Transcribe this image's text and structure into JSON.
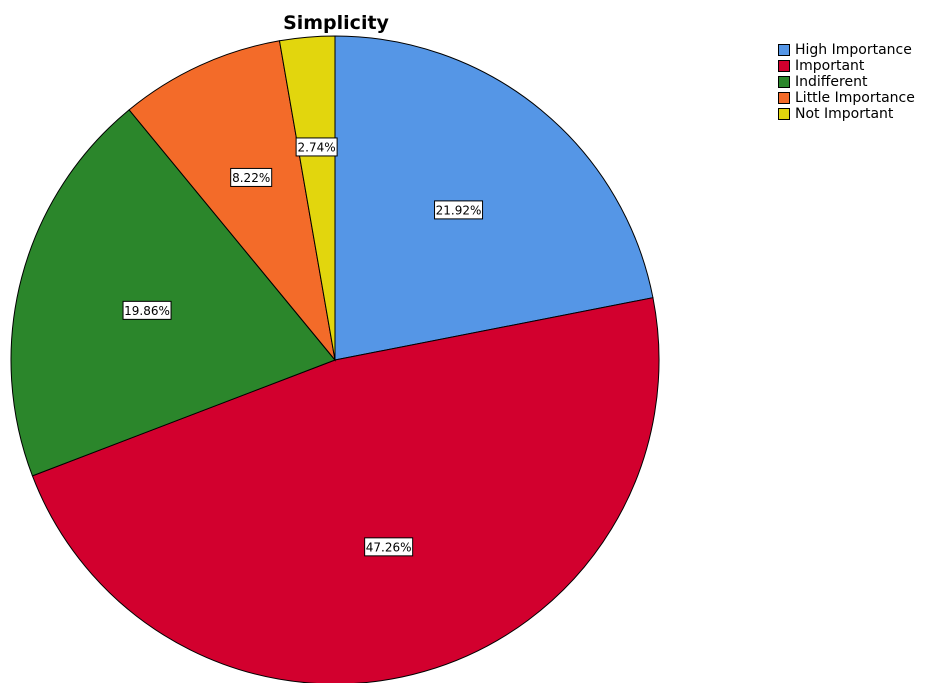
{
  "chart_data": {
    "type": "pie",
    "title": "Simplicity",
    "categories": [
      "High Importance",
      "Important",
      "Indifferent",
      "Little Importance",
      "Not Important"
    ],
    "values": [
      21.92,
      47.26,
      19.86,
      8.22,
      2.74
    ],
    "data_labels": [
      "21.92%",
      "47.26%",
      "19.86%",
      "8.22%",
      "2.74%"
    ],
    "colors": [
      "#5596e6",
      "#d2002e",
      "#2b862b",
      "#f36b29",
      "#e2d60d"
    ],
    "start_angle_deg": 0,
    "direction": "clockwise",
    "legend_position": "top-right"
  }
}
